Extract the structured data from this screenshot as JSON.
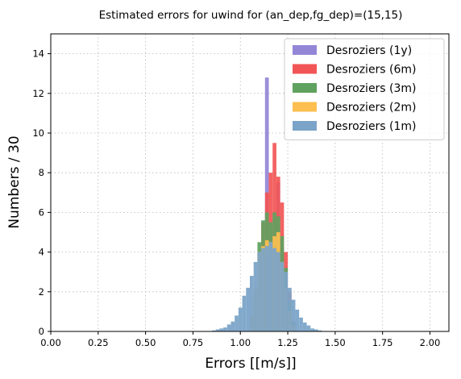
{
  "chart_data": {
    "type": "bar",
    "title": "Estimated errors for uwind for (an_dep,fg_dep)=(15,15)",
    "xlabel": "Errors [[m/s]]",
    "ylabel": "Numbers / 30",
    "xlim": [
      0.0,
      2.1
    ],
    "ylim": [
      0,
      15
    ],
    "xticks": [
      "0.00",
      "0.25",
      "0.50",
      "0.75",
      "1.00",
      "1.25",
      "1.50",
      "1.75",
      "2.00"
    ],
    "xtick_values": [
      0.0,
      0.25,
      0.5,
      0.75,
      1.0,
      1.25,
      1.5,
      1.75,
      2.0
    ],
    "yticks": [
      "0",
      "2",
      "4",
      "6",
      "8",
      "10",
      "12",
      "14"
    ],
    "ytick_values": [
      0,
      2,
      4,
      6,
      8,
      10,
      12,
      14
    ],
    "grid": true,
    "legend_position": "top-right",
    "bin_width": 0.02,
    "bin_start": 0.85,
    "series": [
      {
        "name": "Desroziers (1y)",
        "color": "#9386d6",
        "values": [
          0,
          0,
          0,
          0,
          0,
          0,
          0,
          0,
          0,
          0,
          0,
          0,
          0.1,
          0.5,
          12.8,
          3.0,
          2.5,
          7.5,
          4.2,
          3.0,
          0.8,
          0.2,
          0,
          0,
          0,
          0,
          0,
          0,
          0
        ]
      },
      {
        "name": "Desroziers (6m)",
        "color": "#f25555",
        "values": [
          0,
          0,
          0,
          0,
          0,
          0,
          0,
          0,
          0,
          0,
          0.5,
          1.5,
          3.5,
          5.5,
          7.0,
          8.0,
          9.5,
          7.8,
          6.5,
          4.0,
          2.0,
          0.5,
          0,
          0,
          0,
          0,
          0,
          0,
          0
        ]
      },
      {
        "name": "Desroziers (3m)",
        "color": "#5fa15f",
        "values": [
          0,
          0,
          0,
          0,
          0,
          0,
          0,
          0,
          0,
          0,
          0.8,
          2.0,
          4.5,
          5.6,
          6.0,
          5.5,
          6.0,
          5.8,
          4.8,
          3.2,
          1.5,
          0.5,
          0,
          0,
          0,
          0,
          0,
          0,
          0
        ]
      },
      {
        "name": "Desroziers (2m)",
        "color": "#fdbf4f",
        "values": [
          0,
          0,
          0,
          0,
          0,
          0,
          0,
          0,
          0,
          0,
          0.8,
          2.2,
          4.0,
          4.3,
          4.6,
          4.5,
          4.8,
          5.0,
          3.5,
          2.2,
          1.0,
          0.3,
          0,
          0,
          0,
          0,
          0,
          0,
          0
        ]
      },
      {
        "name": "Desroziers (1m)",
        "color": "#7ba4c8",
        "values": [
          0.05,
          0.1,
          0.15,
          0.2,
          0.35,
          0.5,
          0.8,
          1.2,
          1.8,
          2.2,
          2.8,
          3.5,
          4.0,
          4.2,
          4.3,
          4.5,
          4.2,
          4.0,
          3.5,
          3.0,
          2.2,
          1.6,
          1.1,
          0.7,
          0.45,
          0.3,
          0.15,
          0.1,
          0.05
        ]
      }
    ]
  }
}
